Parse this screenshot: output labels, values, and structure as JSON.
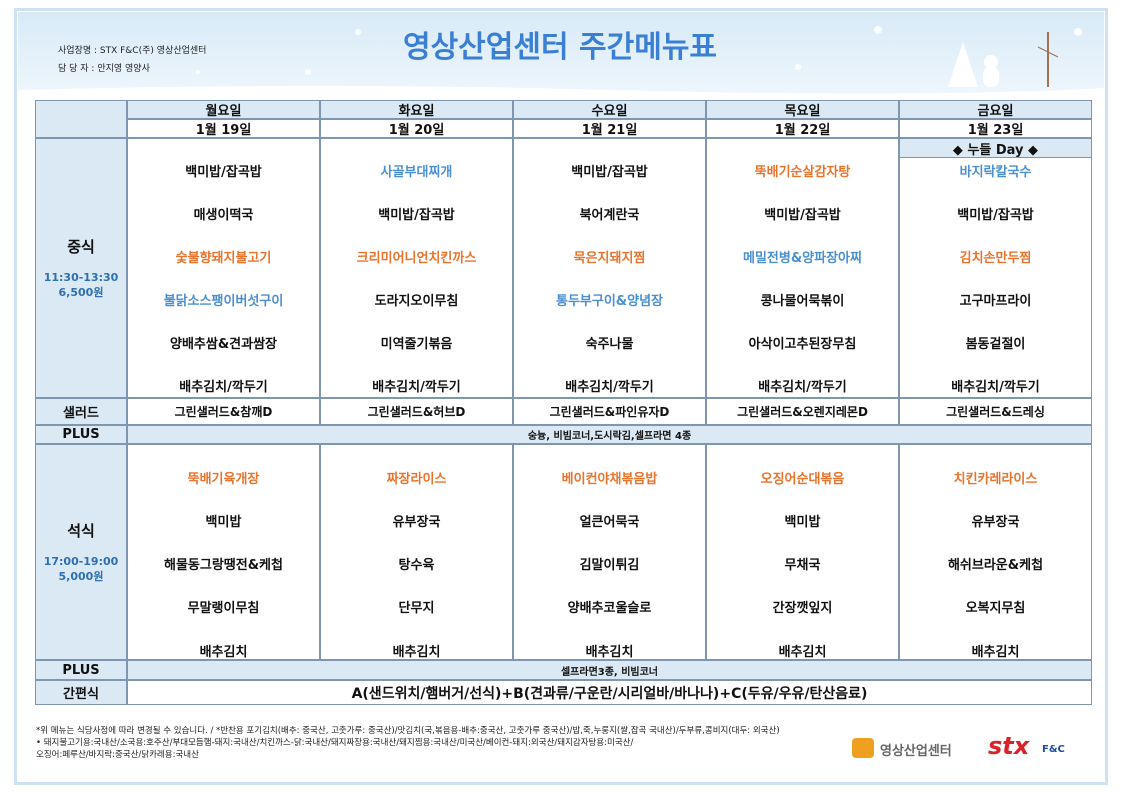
{
  "header": {
    "info": [
      "사업장명 : STX F&C(주) 영상산업센터",
      "담 당 자 : 안지영 영양사"
    ],
    "title": "영상산업센터 주간메뉴표"
  },
  "days": [
    {
      "day": "월요일",
      "date": "1월 19일"
    },
    {
      "day": "화요일",
      "date": "1월 20일"
    },
    {
      "day": "수요일",
      "date": "1월 21일"
    },
    {
      "day": "목요일",
      "date": "1월 22일"
    },
    {
      "day": "금요일",
      "date": "1월 23일"
    }
  ],
  "lunch": {
    "label": "중식",
    "time": "11:30-13:30",
    "price": "6,500원",
    "badge": "◆ 누들 Day ◆",
    "menus": [
      [
        {
          "text": "백미밥/잡곡밥"
        },
        {
          "text": "매생이떡국"
        },
        {
          "text": "숯불향돼지불고기",
          "color": "#e8732c"
        },
        {
          "text": "불닭소스팽이버섯구이",
          "color": "#4a8fd0"
        },
        {
          "text": "양배추쌈&견과쌈장"
        },
        {
          "text": "배추김치/깍두기"
        }
      ],
      [
        {
          "text": "사골부대찌개",
          "color": "#4a8fd0"
        },
        {
          "text": "백미밥/잡곡밥"
        },
        {
          "text": "크리미어니언치킨까스",
          "color": "#e8732c"
        },
        {
          "text": "도라지오이무침"
        },
        {
          "text": "미역줄기볶음"
        },
        {
          "text": "배추김치/깍두기"
        }
      ],
      [
        {
          "text": "백미밥/잡곡밥"
        },
        {
          "text": "북어계란국"
        },
        {
          "text": "묵은지돼지찜",
          "color": "#e8732c"
        },
        {
          "text": "통두부구이&양념장",
          "color": "#4a8fd0"
        },
        {
          "text": "숙주나물"
        },
        {
          "text": "배추김치/깍두기"
        }
      ],
      [
        {
          "text": "뚝배기순살감자탕",
          "color": "#e8732c"
        },
        {
          "text": "백미밥/잡곡밥"
        },
        {
          "text": "메밀전병&양파장아찌",
          "color": "#4a8fd0"
        },
        {
          "text": "콩나물어묵볶이"
        },
        {
          "text": "아삭이고추된장무침"
        },
        {
          "text": "배추김치/깍두기"
        }
      ],
      [
        {
          "text": "바지락칼국수",
          "color": "#4a8fd0"
        },
        {
          "text": "백미밥/잡곡밥"
        },
        {
          "text": "김치손만두찜",
          "color": "#e8732c"
        },
        {
          "text": "고구마프라이"
        },
        {
          "text": "봄동겉절이"
        },
        {
          "text": "배추김치/깍두기"
        }
      ]
    ]
  },
  "salad": {
    "label": "샐러드",
    "items": [
      "그린샐러드&참깨D",
      "그린샐러드&허브D",
      "그린샐러드&파인유자D",
      "그린샐러드&오렌지레몬D",
      "그린샐러드&드레싱"
    ]
  },
  "plus1": {
    "label": "PLUS",
    "text": "숭늉, 비빔코너,도시락김,셀프라면 4종"
  },
  "dinner": {
    "label": "석식",
    "time": "17:00-19:00",
    "price": "5,000원",
    "menus": [
      [
        {
          "text": "뚝배기육개장",
          "color": "#e8732c"
        },
        {
          "text": "백미밥"
        },
        {
          "text": "해물동그랑땡전&케첩"
        },
        {
          "text": "무말랭이무침"
        },
        {
          "text": "배추김치"
        }
      ],
      [
        {
          "text": "짜장라이스",
          "color": "#e8732c"
        },
        {
          "text": "유부장국"
        },
        {
          "text": "탕수육"
        },
        {
          "text": "단무지"
        },
        {
          "text": "배추김치"
        }
      ],
      [
        {
          "text": "베이컨야채볶음밥",
          "color": "#e8732c"
        },
        {
          "text": "얼큰어묵국"
        },
        {
          "text": "김말이튀김"
        },
        {
          "text": "양배추코울슬로"
        },
        {
          "text": "배추김치"
        }
      ],
      [
        {
          "text": "오징어순대볶음",
          "color": "#e8732c"
        },
        {
          "text": "백미밥"
        },
        {
          "text": "무채국"
        },
        {
          "text": "간장깻잎지"
        },
        {
          "text": "배추김치"
        }
      ],
      [
        {
          "text": "치킨카레라이스",
          "color": "#e8732c"
        },
        {
          "text": "유부장국"
        },
        {
          "text": "해쉬브라운&케첩"
        },
        {
          "text": "오복지무침"
        },
        {
          "text": "배추김치"
        }
      ]
    ]
  },
  "plus2": {
    "label": "PLUS",
    "text": "셀프라면3종, 비빔코너"
  },
  "snack": {
    "label": "간편식",
    "text": "A(샌드위치/햄버거/선식)+B(견과류/구운란/시리얼바/바나나)+C(두유/우유/탄산음료)"
  },
  "footer": {
    "notes": [
      "*위 메뉴는 식당사정에 따라 변경될 수 있습니다. / *반찬용 포기김치(배추: 중국산, 고춧가루: 중국산)/맛김치(국,볶음용-배추:중국산, 고춧가루 중국산)/밥,죽,누룽지(쌀,잡곡 국내산)/두부류,콩비지(대두: 외국산)",
      "• 돼지불고기용:국내산/소국용:호주산/부대모듬햄-돼지:국내산/치킨까스-닭:국내산/돼지짜장용:국내산/돼지찜용:국내산/미국산/베이컨-돼지:외국산/돼지감자탕용:미국산/",
      "오징어:페루산/바지락:중국산/닭카레용:국내산"
    ],
    "logo": "영상산업센터",
    "brand": "stx",
    "brand_sub": "F&C"
  }
}
